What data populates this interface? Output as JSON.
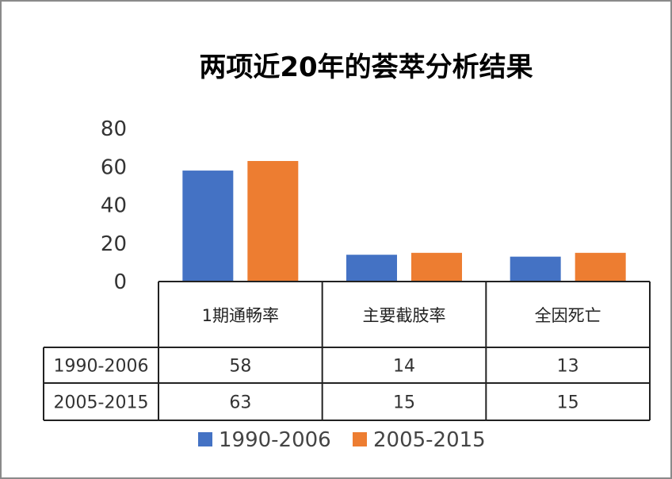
{
  "chart_data": {
    "type": "bar",
    "title": "两项近20年的荟萃分析结果",
    "categories": [
      "1期通畅率",
      "主要截肢率",
      "全因死亡"
    ],
    "series": [
      {
        "name": "1990-2006",
        "values": [
          58,
          14,
          13
        ],
        "color": "#4472C4"
      },
      {
        "name": "2005-2015",
        "values": [
          63,
          15,
          15
        ],
        "color": "#ED7D31"
      }
    ],
    "yticks": [
      0,
      20,
      40,
      60,
      80
    ],
    "ylim": [
      0,
      80
    ],
    "legend_position": "bottom",
    "data_table": true
  }
}
